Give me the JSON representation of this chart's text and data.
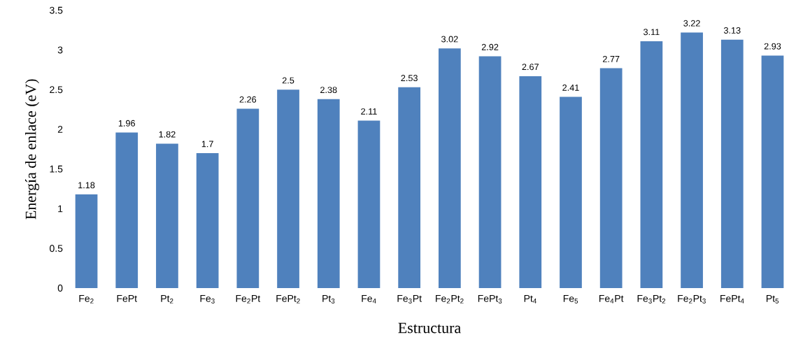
{
  "chart_data": {
    "type": "bar",
    "xlabel": "Estructura",
    "ylabel": "Energía de enlace (eV)",
    "categories": [
      "Fe$_{2}$",
      "FePt",
      "Pt$_{2}$",
      "Fe$_{3}$",
      "Fe$_{2}$Pt",
      "FePt$_{2}$",
      "Pt$_{3}$",
      "Fe$_{4}$",
      "Fe$_{3}$Pt",
      "Fe$_{2}$Pt$_{2}$",
      "FePt$_{3}$",
      "Pt$_{4}$",
      "Fe$_{5}$",
      "Fe$_{4}$Pt",
      "Fe$_{3}$Pt$_{2}$",
      "Fe$_{2}$Pt$_{3}$",
      "FePt$_{4}$",
      "Pt$_{5}$"
    ],
    "values": [
      1.18,
      1.96,
      1.82,
      1.7,
      2.26,
      2.5,
      2.38,
      2.11,
      2.53,
      3.02,
      2.92,
      2.67,
      2.41,
      2.77,
      3.11,
      3.22,
      3.13,
      2.93
    ],
    "color": "#4f81bd",
    "ylim": [
      0,
      3.5
    ],
    "yticks": [
      0,
      0.5,
      1,
      1.5,
      2,
      2.5,
      3,
      3.5
    ],
    "data_labels": true
  }
}
